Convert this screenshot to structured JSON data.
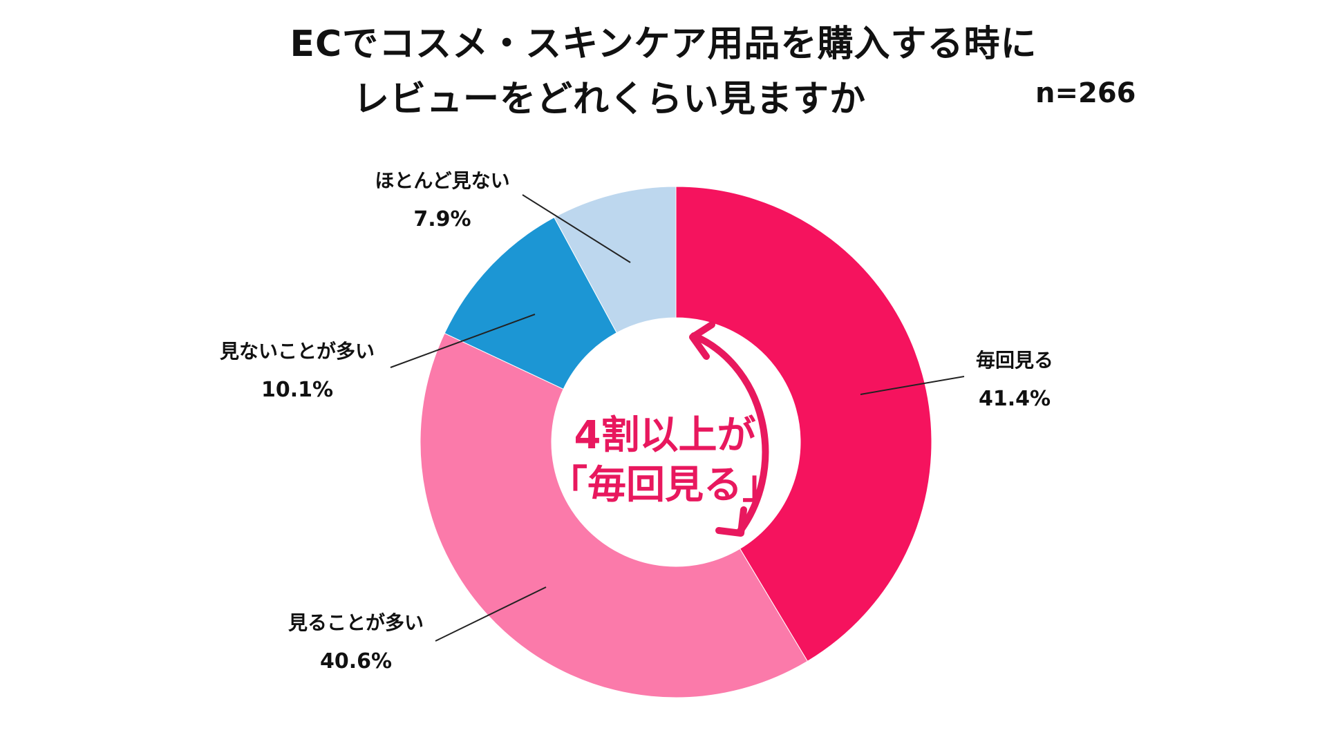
{
  "title": {
    "line1": "ECでコスメ・スキンケア用品を購入する時に",
    "line2": "レビューをどれくらい見ますか"
  },
  "sample_size": "n=266",
  "callout": {
    "line1": "4割以上が",
    "line2": "「毎回見る」",
    "color": "#e8185e"
  },
  "chart_data": {
    "type": "pie",
    "donut": true,
    "start": "top",
    "direction": "clockwise",
    "title": "ECでコスメ・スキンケア用品を購入する時に レビューをどれくらい見ますか",
    "slices": [
      {
        "label": "毎回見る",
        "value": 41.4,
        "value_label": "41.4%",
        "color": "#f5135e"
      },
      {
        "label": "見ることが多い",
        "value": 40.6,
        "value_label": "40.6%",
        "color": "#fb7aaa"
      },
      {
        "label": "見ないことが多い",
        "value": 10.1,
        "value_label": "10.1%",
        "color": "#1c96d4"
      },
      {
        "label": "ほとんど見ない",
        "value": 7.9,
        "value_label": "7.9%",
        "color": "#bdd7ee"
      }
    ]
  }
}
